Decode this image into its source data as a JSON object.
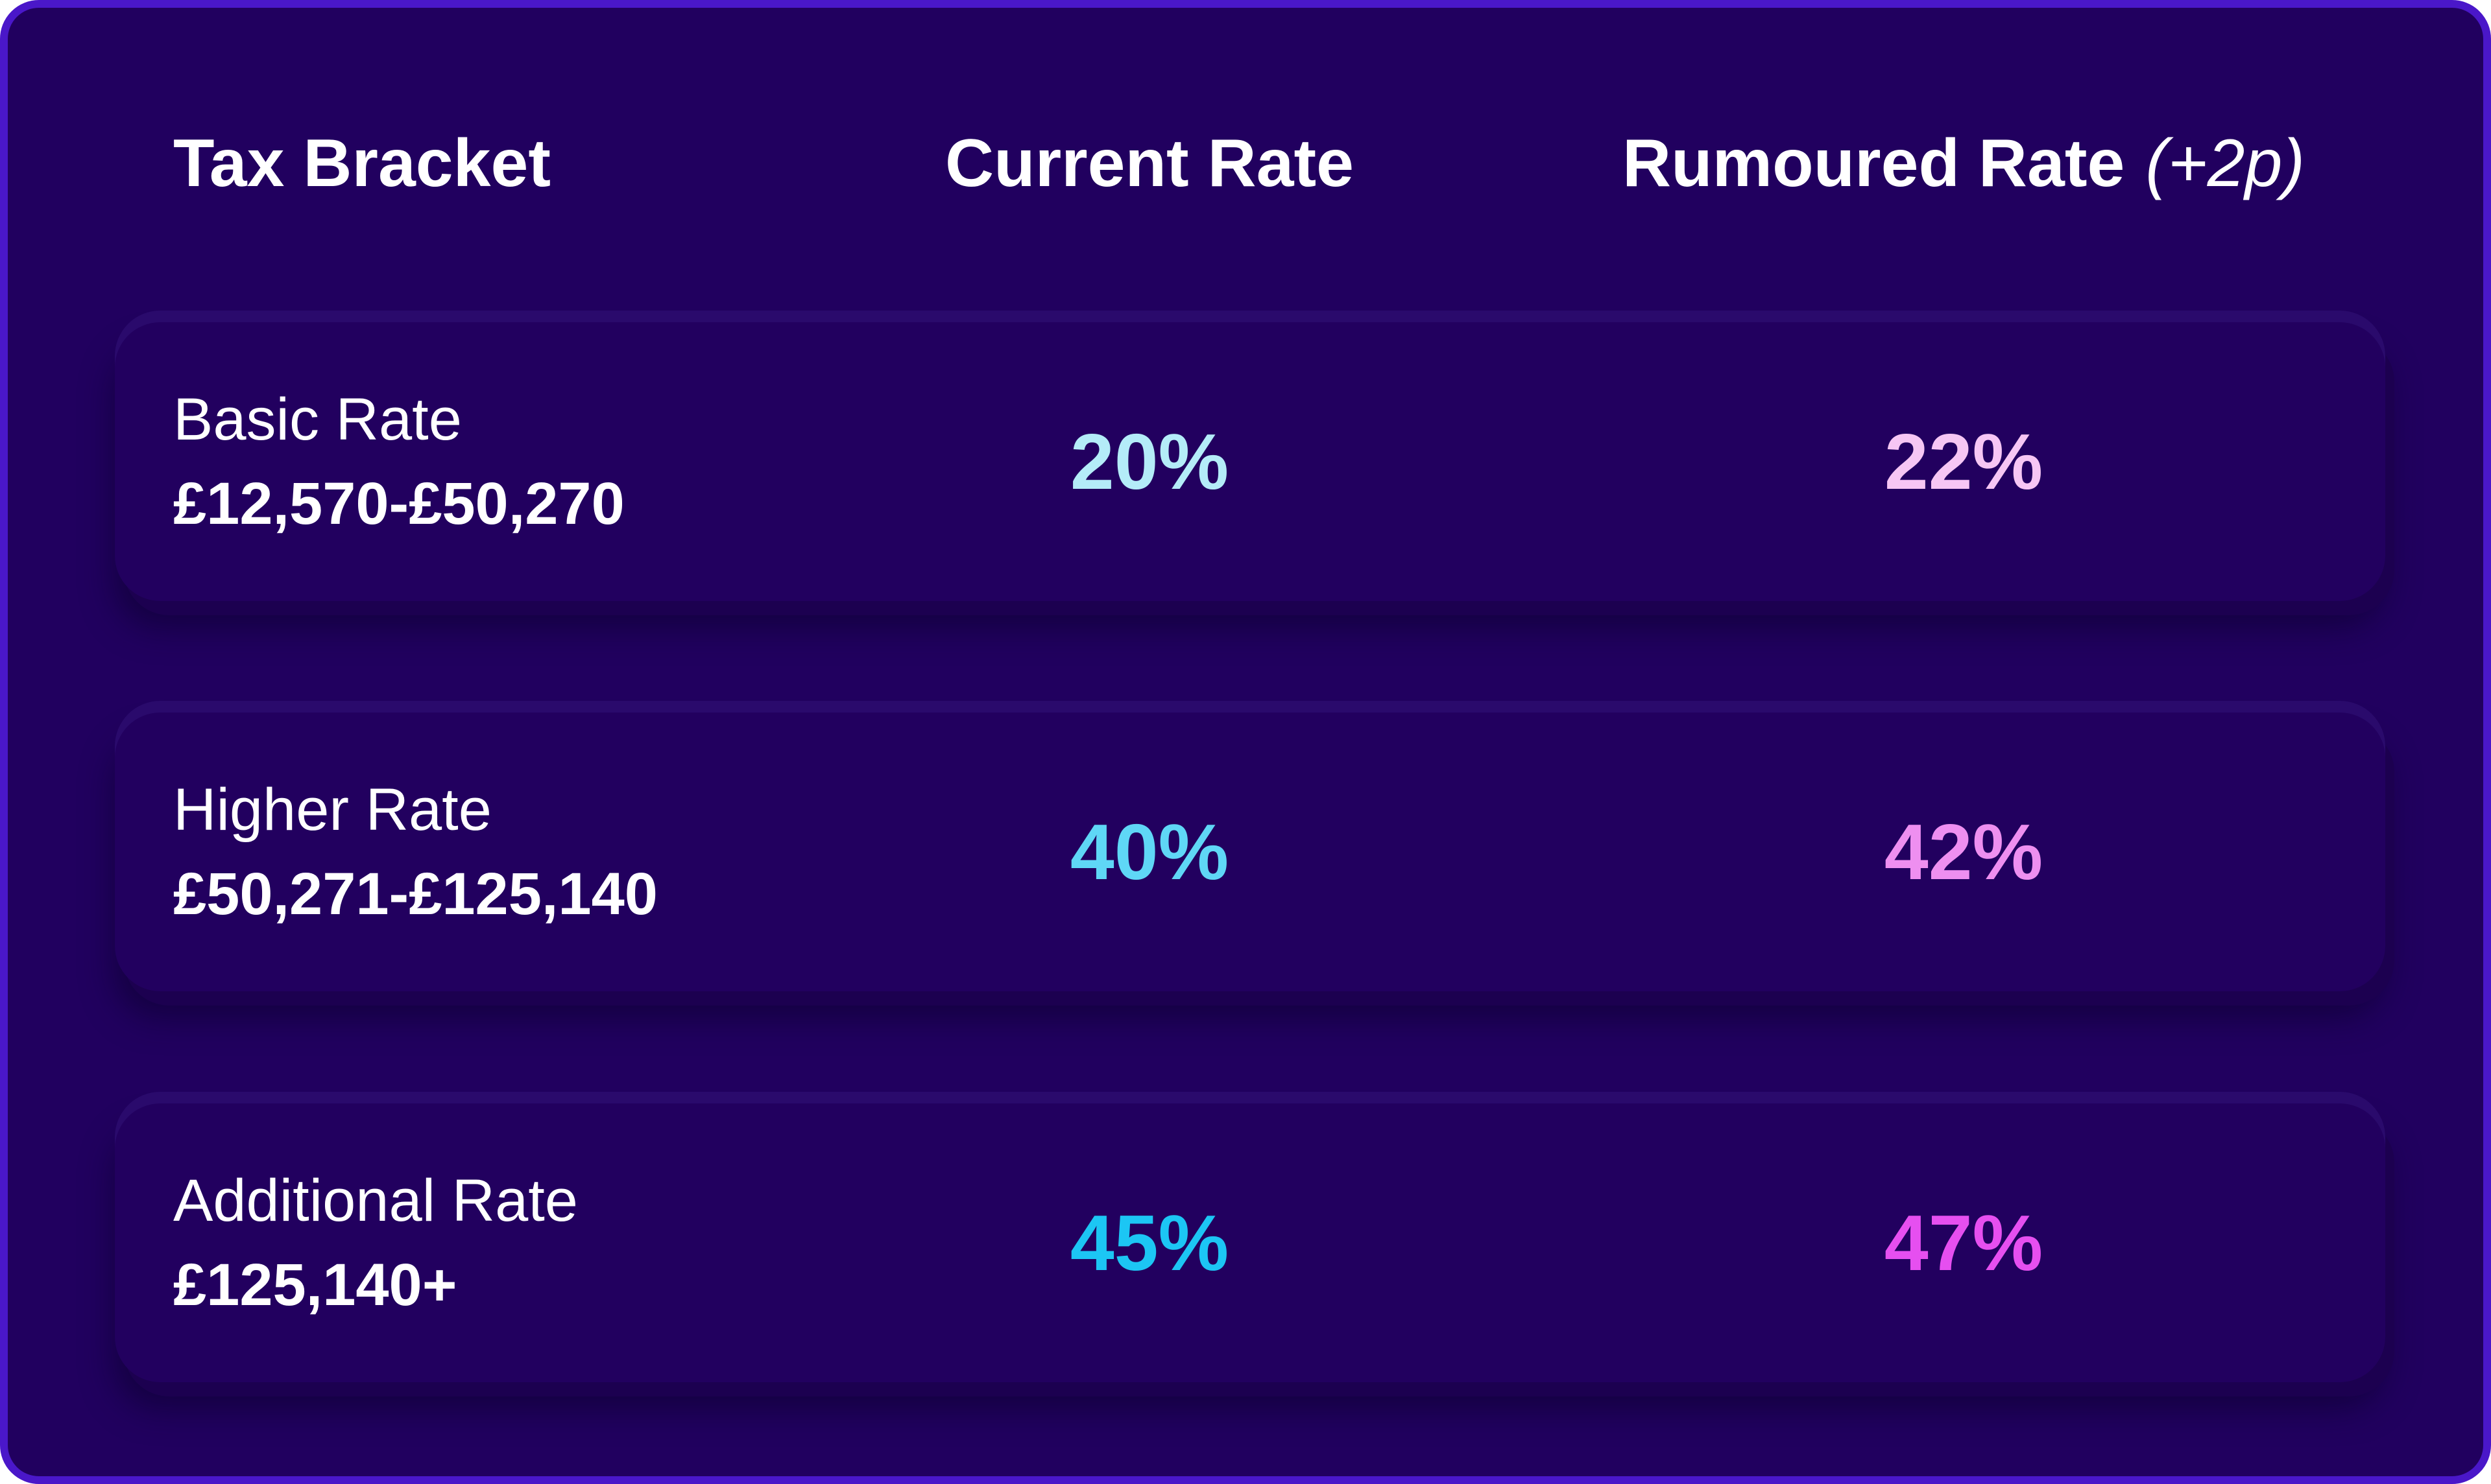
{
  "header": {
    "bracket_label": "Tax Bracket",
    "current_label": "Current Rate",
    "rumoured_label": "Rumoured Rate",
    "rumoured_note": "(+2p)"
  },
  "rows": [
    {
      "name": "Basic Rate",
      "range": "£12,570-£50,270",
      "current": "20%",
      "rumoured": "22%",
      "current_color": "#b4ecf8",
      "rumoured_color": "#f6c6f4"
    },
    {
      "name": "Higher Rate",
      "range": "£50,271-£125,140",
      "current": "40%",
      "rumoured": "42%",
      "current_color": "#5fd7f6",
      "rumoured_color": "#ee8ff0"
    },
    {
      "name": "Additional Rate",
      "range": "£125,140+",
      "current": "45%",
      "rumoured": "47%",
      "current_color": "#1cc6f4",
      "rumoured_color": "#e64ff0"
    }
  ],
  "colors": {
    "background": "#21005f",
    "border": "#4a17c9",
    "text": "#ffffff"
  }
}
